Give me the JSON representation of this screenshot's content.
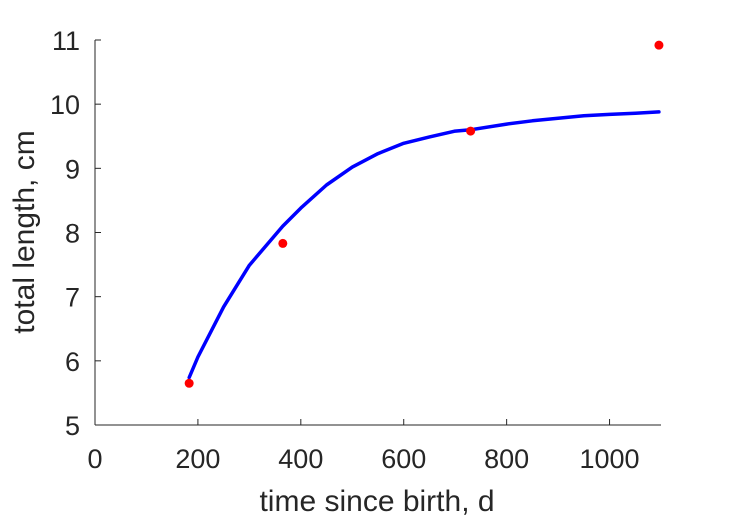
{
  "chart_data": {
    "type": "scatter",
    "title": "",
    "xlabel": "time since birth, d",
    "ylabel": "total length, cm",
    "xlim": [
      0,
      1100
    ],
    "ylim": [
      5,
      11
    ],
    "xticks": [
      0,
      200,
      400,
      600,
      800,
      1000
    ],
    "yticks": [
      5,
      6,
      7,
      8,
      9,
      10,
      11
    ],
    "grid": false,
    "series": [
      {
        "kind": "line",
        "color": "#0000ff",
        "x": [
          183,
          200,
          250,
          300,
          365,
          400,
          450,
          500,
          550,
          600,
          650,
          700,
          730,
          800,
          850,
          900,
          950,
          1000,
          1050,
          1096
        ],
        "y": [
          5.74,
          6.06,
          6.84,
          7.49,
          8.1,
          8.38,
          8.74,
          9.02,
          9.23,
          9.39,
          9.49,
          9.58,
          9.6,
          9.69,
          9.74,
          9.78,
          9.82,
          9.84,
          9.86,
          9.88
        ]
      },
      {
        "kind": "points",
        "color": "#ff0000",
        "x": [
          183,
          365,
          730,
          1096
        ],
        "y": [
          5.65,
          7.83,
          9.58,
          10.92
        ]
      }
    ]
  }
}
